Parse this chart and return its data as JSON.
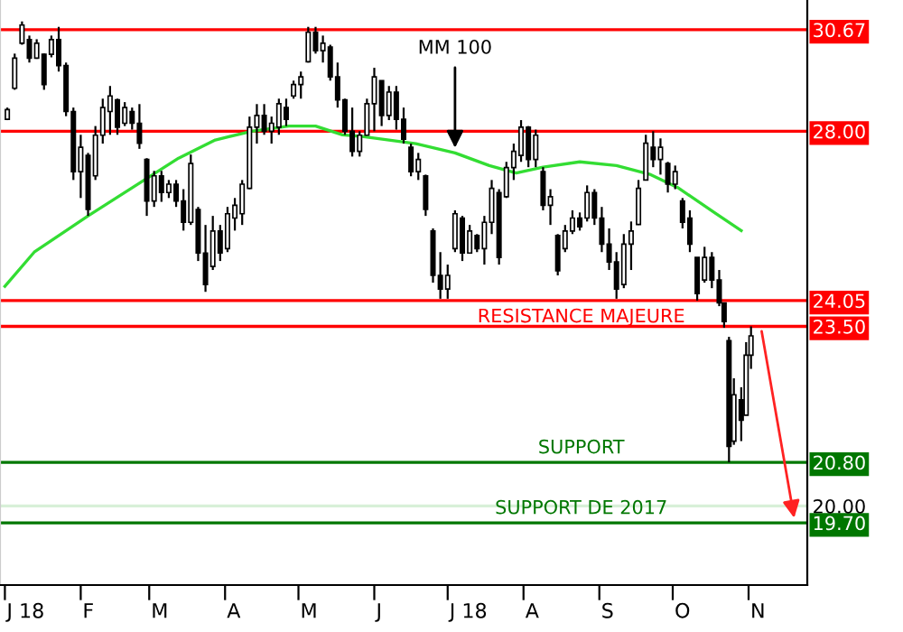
{
  "chart_data": {
    "type": "candlestick",
    "series": [
      {
        "type": "candlestick",
        "color": "#000000",
        "x": [
          "2018-01-02",
          "2018-01-05",
          "2018-01-08",
          "2018-01-11",
          "2018-01-14",
          "2018-01-17",
          "2018-01-20",
          "2018-01-23",
          "2018-01-26",
          "2018-01-29",
          "2018-02-01",
          "2018-02-04",
          "2018-02-07",
          "2018-02-10",
          "2018-02-13",
          "2018-02-16",
          "2018-02-19",
          "2018-02-22",
          "2018-02-25",
          "2018-02-28",
          "2018-03-03",
          "2018-03-06",
          "2018-03-09",
          "2018-03-12",
          "2018-03-15",
          "2018-03-18",
          "2018-03-21",
          "2018-03-24",
          "2018-03-27",
          "2018-03-30",
          "2018-04-02",
          "2018-04-05",
          "2018-04-08",
          "2018-04-11",
          "2018-04-14",
          "2018-04-17",
          "2018-04-20",
          "2018-04-23",
          "2018-04-26",
          "2018-04-29",
          "2018-05-02",
          "2018-05-05",
          "2018-05-08",
          "2018-05-11",
          "2018-05-14",
          "2018-05-17",
          "2018-05-20",
          "2018-05-23",
          "2018-05-26",
          "2018-05-29",
          "2018-06-01",
          "2018-06-04",
          "2018-06-07",
          "2018-06-10",
          "2018-06-13",
          "2018-06-16",
          "2018-06-19",
          "2018-06-22",
          "2018-06-25",
          "2018-06-28",
          "2018-07-01",
          "2018-07-04",
          "2018-07-07",
          "2018-07-10",
          "2018-07-13",
          "2018-07-16",
          "2018-07-19",
          "2018-07-22",
          "2018-07-25",
          "2018-07-28",
          "2018-07-31",
          "2018-08-03",
          "2018-08-06",
          "2018-08-09",
          "2018-08-12",
          "2018-08-15",
          "2018-08-18",
          "2018-08-21",
          "2018-08-24",
          "2018-08-27",
          "2018-08-30",
          "2018-09-02",
          "2018-09-05",
          "2018-09-08",
          "2018-09-11",
          "2018-09-14",
          "2018-09-17",
          "2018-09-20",
          "2018-09-23",
          "2018-09-26",
          "2018-09-29",
          "2018-10-02",
          "2018-10-05",
          "2018-10-08",
          "2018-10-11",
          "2018-10-14",
          "2018-10-17",
          "2018-10-20",
          "2018-10-22",
          "2018-10-24",
          "2018-10-26",
          "2018-10-29",
          "2018-10-31",
          "2018-11-02"
        ],
        "ohlc": [
          [
            28.3,
            28.6,
            28.28,
            28.55
          ],
          [
            29.1,
            30.02,
            29.06,
            29.9
          ],
          [
            30.3,
            30.9,
            30.26,
            30.8
          ],
          [
            30.4,
            30.51,
            29.78,
            29.9
          ],
          [
            29.9,
            30.41,
            29.88,
            30.3
          ],
          [
            30.0,
            30.02,
            29.06,
            29.2
          ],
          [
            30.0,
            30.51,
            29.92,
            30.4
          ],
          [
            30.4,
            30.75,
            29.54,
            29.7
          ],
          [
            29.7,
            29.78,
            28.38,
            28.5
          ],
          [
            28.5,
            28.6,
            26.8,
            27.0
          ],
          [
            27.0,
            27.91,
            26.37,
            27.6
          ],
          [
            27.4,
            27.46,
            25.95,
            26.1
          ],
          [
            26.9,
            28.13,
            26.8,
            27.9
          ],
          [
            27.9,
            28.83,
            27.69,
            28.6
          ],
          [
            28.5,
            29.16,
            27.91,
            28.9
          ],
          [
            28.8,
            28.83,
            27.91,
            28.1
          ],
          [
            28.2,
            28.74,
            28.13,
            28.6
          ],
          [
            28.5,
            28.6,
            28.04,
            28.2
          ],
          [
            28.2,
            28.69,
            27.56,
            27.7
          ],
          [
            27.3,
            27.33,
            25.95,
            26.3
          ],
          [
            26.3,
            27.02,
            26.16,
            26.9
          ],
          [
            26.9,
            27.02,
            26.28,
            26.5
          ],
          [
            26.5,
            26.8,
            26.37,
            26.7
          ],
          [
            26.7,
            26.8,
            26.16,
            26.3
          ],
          [
            26.3,
            26.58,
            25.61,
            25.8
          ],
          [
            25.8,
            27.42,
            25.74,
            27.2
          ],
          [
            26.1,
            26.16,
            24.92,
            25.1
          ],
          [
            25.1,
            25.74,
            24.24,
            24.4
          ],
          [
            24.8,
            25.95,
            24.72,
            25.6
          ],
          [
            25.6,
            25.74,
            24.92,
            25.1
          ],
          [
            25.2,
            26.16,
            25.12,
            26.0
          ],
          [
            25.9,
            26.37,
            25.61,
            26.2
          ],
          [
            26.0,
            26.8,
            25.74,
            26.7
          ],
          [
            26.6,
            28.37,
            26.58,
            28.1
          ],
          [
            28.1,
            28.69,
            27.69,
            28.4
          ],
          [
            28.4,
            28.69,
            27.91,
            28.0
          ],
          [
            28.0,
            28.37,
            27.69,
            28.2
          ],
          [
            28.1,
            28.83,
            27.91,
            28.7
          ],
          [
            28.6,
            28.83,
            28.13,
            28.3
          ],
          [
            28.9,
            29.3,
            28.83,
            29.2
          ],
          [
            29.2,
            29.54,
            28.83,
            29.4
          ],
          [
            29.8,
            30.75,
            29.78,
            30.6
          ],
          [
            30.6,
            30.75,
            30.02,
            30.1
          ],
          [
            30.1,
            30.51,
            29.78,
            30.3
          ],
          [
            30.2,
            30.26,
            29.3,
            29.4
          ],
          [
            29.4,
            29.78,
            28.6,
            28.8
          ],
          [
            28.8,
            28.83,
            27.91,
            28.0
          ],
          [
            28.0,
            28.6,
            27.37,
            27.5
          ],
          [
            27.5,
            28.0,
            27.37,
            27.9
          ],
          [
            27.9,
            28.83,
            27.9,
            28.7
          ],
          [
            28.7,
            29.64,
            28.0,
            29.4
          ],
          [
            29.3,
            29.3,
            28.13,
            28.4
          ],
          [
            28.4,
            29.16,
            28.28,
            29.0
          ],
          [
            29.0,
            29.16,
            28.04,
            28.3
          ],
          [
            28.3,
            28.6,
            27.69,
            27.8
          ],
          [
            27.6,
            27.69,
            26.89,
            27.0
          ],
          [
            27.0,
            27.46,
            26.8,
            27.3
          ],
          [
            26.9,
            26.93,
            25.95,
            26.1
          ],
          [
            25.6,
            25.66,
            24.44,
            24.6
          ],
          [
            24.6,
            25.12,
            24.09,
            24.3
          ],
          [
            24.3,
            24.84,
            24.09,
            24.6
          ],
          [
            25.2,
            26.08,
            25.12,
            26.0
          ],
          [
            25.9,
            25.95,
            24.92,
            25.1
          ],
          [
            25.1,
            25.74,
            25.1,
            25.6
          ],
          [
            25.5,
            25.53,
            25.12,
            25.2
          ],
          [
            25.2,
            25.95,
            24.84,
            25.8
          ],
          [
            25.8,
            26.8,
            25.53,
            26.6
          ],
          [
            26.5,
            26.58,
            24.84,
            25.0
          ],
          [
            26.4,
            27.24,
            26.37,
            27.1
          ],
          [
            27.1,
            27.69,
            26.8,
            27.5
          ],
          [
            27.4,
            28.28,
            27.24,
            28.1
          ],
          [
            28.1,
            28.13,
            27.11,
            27.3
          ],
          [
            27.3,
            28.04,
            27.11,
            27.9
          ],
          [
            27.0,
            27.11,
            26.08,
            26.2
          ],
          [
            26.2,
            26.58,
            25.74,
            26.4
          ],
          [
            25.5,
            25.53,
            24.6,
            24.7
          ],
          [
            25.2,
            25.74,
            25.12,
            25.6
          ],
          [
            25.6,
            26.08,
            25.53,
            25.9
          ],
          [
            25.9,
            26.03,
            25.61,
            25.7
          ],
          [
            25.9,
            26.67,
            25.82,
            26.5
          ],
          [
            26.5,
            26.58,
            25.74,
            25.9
          ],
          [
            25.9,
            26.16,
            25.12,
            25.3
          ],
          [
            25.3,
            25.66,
            24.72,
            24.9
          ],
          [
            24.9,
            25.12,
            24.09,
            24.3
          ],
          [
            24.4,
            25.53,
            24.32,
            25.3
          ],
          [
            25.3,
            25.82,
            24.72,
            25.6
          ],
          [
            25.75,
            26.8,
            25.74,
            26.6
          ],
          [
            26.8,
            27.91,
            26.8,
            27.7
          ],
          [
            27.6,
            28.0,
            27.11,
            27.3
          ],
          [
            27.3,
            27.82,
            26.93,
            27.6
          ],
          [
            27.2,
            27.24,
            26.5,
            26.7
          ],
          [
            26.7,
            27.15,
            26.58,
            27.0
          ],
          [
            26.3,
            26.37,
            25.66,
            25.8
          ],
          [
            25.9,
            26.08,
            25.12,
            25.3
          ],
          [
            25.0,
            25.0,
            24.05,
            24.2
          ],
          [
            24.5,
            25.24,
            24.44,
            25.0
          ],
          [
            25.0,
            25.12,
            24.32,
            24.5
          ],
          [
            24.5,
            24.72,
            23.93,
            24.0
          ],
          [
            24.0,
            24.01,
            23.47,
            23.6
          ],
          [
            23.2,
            23.28,
            20.8,
            21.1
          ],
          [
            21.2,
            22.43,
            21.13,
            22.1
          ],
          [
            22.0,
            22.25,
            21.2,
            21.6
          ],
          [
            21.7,
            23.17,
            21.7,
            22.9
          ],
          [
            22.9,
            23.5,
            22.62,
            23.3
          ]
        ]
      },
      {
        "type": "line",
        "color": "#33dd33",
        "x": [
          "2018-01-01",
          "2018-01-13",
          "2018-02-04",
          "2018-02-27",
          "2018-03-13",
          "2018-03-28",
          "2018-04-12",
          "2018-04-27",
          "2018-05-08",
          "2018-05-19",
          "2018-05-27",
          "2018-06-18",
          "2018-07-04",
          "2018-07-18",
          "2018-07-29",
          "2018-08-09",
          "2018-08-24",
          "2018-09-08",
          "2018-09-22",
          "2018-10-03",
          "2018-10-18",
          "2018-10-29"
        ],
        "values": [
          24.36,
          25.12,
          25.95,
          26.8,
          27.33,
          27.78,
          28.0,
          28.13,
          28.13,
          27.91,
          27.87,
          27.69,
          27.46,
          27.15,
          26.97,
          27.11,
          27.24,
          27.15,
          26.93,
          26.62,
          26.03,
          25.61
        ]
      }
    ],
    "log": "y",
    "ylim": [
      18.63,
      31.5
    ],
    "yticks": [
      {
        "value": 19.7,
        "label": "19.70"
      },
      {
        "value": 20,
        "label": "20.00"
      },
      {
        "value": 20.8,
        "label": "20.80"
      },
      {
        "value": 23.5,
        "label": "23.50"
      },
      {
        "value": 24.05,
        "label": "24.05"
      },
      {
        "value": 28,
        "label": "28.00"
      },
      {
        "value": 30.67,
        "label": "30.67"
      }
    ],
    "xlim": [
      "2017-12-30",
      "2018-11-25"
    ],
    "xticks": [
      {
        "value": "2018-01-01",
        "label": "J 18"
      },
      {
        "value": "2018-02-01",
        "label": "F"
      },
      {
        "value": "2018-03-01",
        "label": "M"
      },
      {
        "value": "2018-04-01",
        "label": "A"
      },
      {
        "value": "2018-05-01",
        "label": "M"
      },
      {
        "value": "2018-06-01",
        "label": "J"
      },
      {
        "value": "2018-07-01",
        "label": "J 18"
      },
      {
        "value": "2018-08-01",
        "label": "A"
      },
      {
        "value": "2018-09-01",
        "label": "S"
      },
      {
        "value": "2018-10-01",
        "label": "O"
      },
      {
        "value": "2018-11-01",
        "label": "N"
      }
    ],
    "ref_lines": [
      {
        "axis": "y",
        "value": 30.67,
        "label": null,
        "color": "#ff0000"
      },
      {
        "axis": "y",
        "value": 28.0,
        "label": null,
        "color": "#ff0000"
      },
      {
        "axis": "y",
        "value": 24.05,
        "label": "RESISTANCE MAJEURE",
        "color": "#ff0000"
      },
      {
        "axis": "y",
        "value": 23.5,
        "label": null,
        "color": "#ff0000"
      },
      {
        "axis": "y",
        "value": 20.8,
        "label": "SUPPORT",
        "color": "#007700"
      },
      {
        "axis": "y",
        "value": 20.0,
        "label": null,
        "color": "#d8f0d8"
      },
      {
        "axis": "y",
        "value": 19.7,
        "label": "SUPPORT DE 2017",
        "color": "#007700"
      }
    ],
    "annotations": [
      {
        "text": "MM 100",
        "x": "2018-07-04",
        "y": 27.46
      }
    ]
  }
}
